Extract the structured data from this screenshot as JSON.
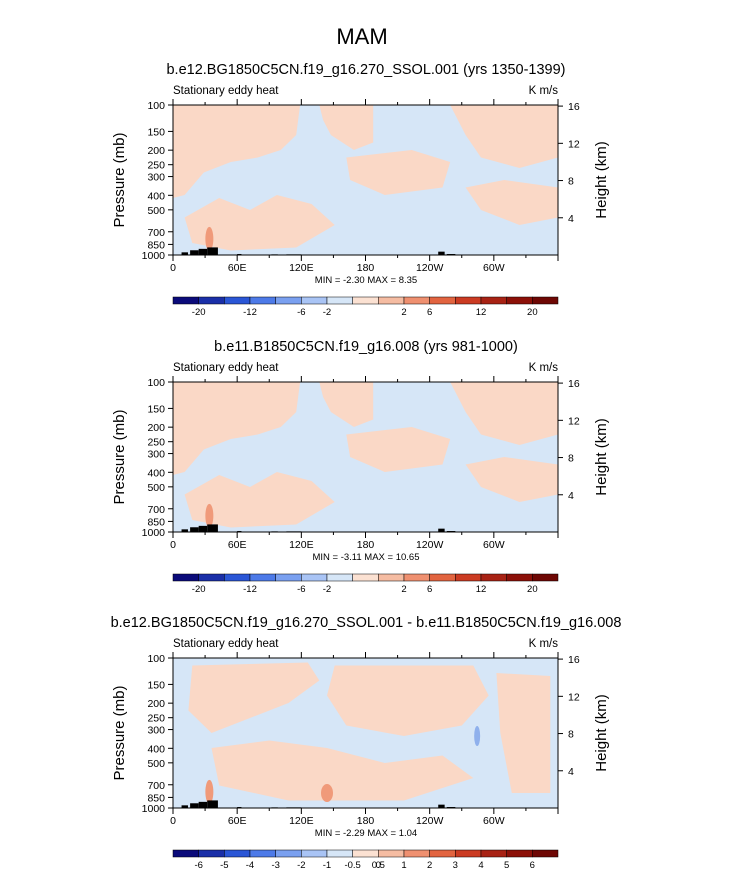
{
  "title": "MAM",
  "chart_data": [
    {
      "type": "heatmap",
      "title": "b.e12.BG1850C5CN.f19_g16.270_SSOL.001 (yrs 1350-1399)",
      "left_label": "Stationary eddy heat",
      "units": "K m/s",
      "ylabel": "Pressure (mb)",
      "ylabel_right": "Height (km)",
      "x_ticks": [
        "0",
        "60E",
        "120E",
        "180",
        "120W",
        "60W"
      ],
      "y_ticks": [
        "100",
        "150",
        "200",
        "250",
        "300",
        "400",
        "500",
        "700",
        "850",
        "1000"
      ],
      "y_ticks_right": [
        "16",
        "12",
        "8",
        "4"
      ],
      "stats": "MIN = -2.30  MAX =  8.35",
      "min": -2.3,
      "max": 8.35,
      "colorbar_labels": [
        "-20",
        "-12",
        "-6",
        "-2",
        "2",
        "6",
        "12",
        "20"
      ],
      "colorbar_levels": [
        -20,
        -16,
        -12,
        -8,
        -6,
        -4,
        -2,
        0,
        2,
        4,
        6,
        8,
        12,
        16,
        20
      ],
      "background_color": "#d6e6f7",
      "positive_color": "#fad8c6",
      "strong_color": "#f09a7a"
    },
    {
      "type": "heatmap",
      "title": "b.e11.B1850C5CN.f19_g16.008 (yrs 981-1000)",
      "left_label": "Stationary eddy heat",
      "units": "K m/s",
      "ylabel": "Pressure (mb)",
      "ylabel_right": "Height (km)",
      "x_ticks": [
        "0",
        "60E",
        "120E",
        "180",
        "120W",
        "60W"
      ],
      "y_ticks": [
        "100",
        "150",
        "200",
        "250",
        "300",
        "400",
        "500",
        "700",
        "850",
        "1000"
      ],
      "y_ticks_right": [
        "16",
        "12",
        "8",
        "4"
      ],
      "stats": "MIN = -3.11  MAX =  10.65",
      "min": -3.11,
      "max": 10.65,
      "colorbar_labels": [
        "-20",
        "-12",
        "-6",
        "-2",
        "2",
        "6",
        "12",
        "20"
      ],
      "colorbar_levels": [
        -20,
        -16,
        -12,
        -8,
        -6,
        -4,
        -2,
        0,
        2,
        4,
        6,
        8,
        12,
        16,
        20
      ],
      "background_color": "#d6e6f7",
      "positive_color": "#fad8c6",
      "strong_color": "#f09a7a"
    },
    {
      "type": "heatmap",
      "title": "b.e12.BG1850C5CN.f19_g16.270_SSOL.001 - b.e11.B1850C5CN.f19_g16.008",
      "left_label": "Stationary eddy heat",
      "units": "K m/s",
      "ylabel": "Pressure (mb)",
      "ylabel_right": "Height (km)",
      "x_ticks": [
        "0",
        "60E",
        "120E",
        "180",
        "120W",
        "60W"
      ],
      "y_ticks": [
        "100",
        "150",
        "200",
        "250",
        "300",
        "400",
        "500",
        "700",
        "850",
        "1000"
      ],
      "y_ticks_right": [
        "16",
        "12",
        "8",
        "4"
      ],
      "stats": "MIN = -2.29  MAX =  1.04",
      "min": -2.29,
      "max": 1.04,
      "colorbar_labels": [
        "-6",
        "-5",
        "-4",
        "-3",
        "-2",
        "-1",
        "-0.5",
        "0",
        "0.5",
        "1",
        "2",
        "3",
        "4",
        "5",
        "6"
      ],
      "colorbar_levels": [
        -6,
        -5,
        -4,
        -3,
        -2,
        -1,
        -0.5,
        0,
        0.5,
        1,
        2,
        3,
        4,
        5,
        6
      ],
      "background_color": "#d6e6f7",
      "positive_color": "#fad8c6",
      "strong_color": "#f09a7a"
    }
  ],
  "colorbar_colors": [
    "#0b0b7a",
    "#1a2fa8",
    "#2a56d6",
    "#4d7ae8",
    "#7aa0f0",
    "#a9c4f5",
    "#d6e6f7",
    "#fbe1d2",
    "#f5bca2",
    "#ef9070",
    "#e26440",
    "#cb3b22",
    "#a82214",
    "#8c1008",
    "#6e0704"
  ]
}
